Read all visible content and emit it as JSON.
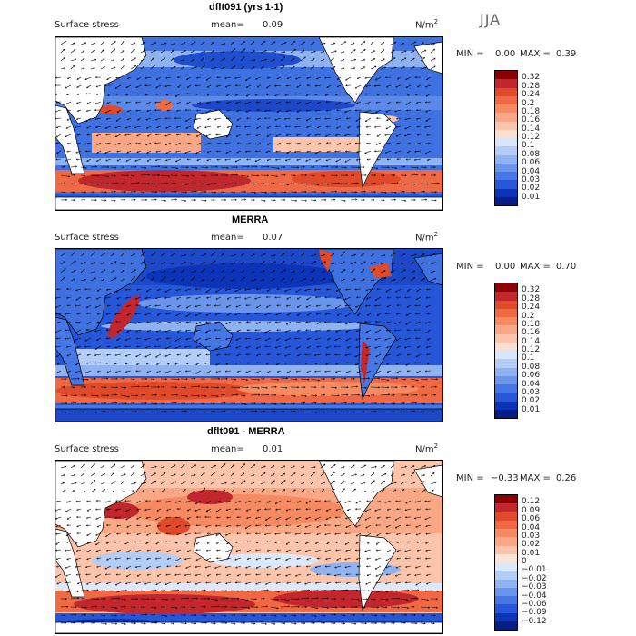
{
  "season": "JJA",
  "panels": [
    {
      "title": "dflt091 (yrs 1-1)",
      "variable": "Surface stress",
      "mean_label": "mean=",
      "mean_value": "0.09",
      "unit": "N/m",
      "unit_exp": "2",
      "min_label": "MIN =",
      "min_value": "0.00",
      "max_label": "MAX =",
      "max_value": "0.39",
      "levels": [
        "0.32",
        "0.28",
        "0.24",
        "0.2",
        "0.18",
        "0.16",
        "0.14",
        "0.12",
        "0.1",
        "0.08",
        "0.06",
        "0.04",
        "0.03",
        "0.02",
        "0.01"
      ],
      "colors": [
        "#8b0000",
        "#c1272d",
        "#e04a2a",
        "#ef6a44",
        "#f58a63",
        "#f9a886",
        "#fcc4aa",
        "#fbe0d0",
        "#d9e6fb",
        "#b4cdf6",
        "#8fb2f0",
        "#6a95ea",
        "#4777e4",
        "#2657d8",
        "#0b34b8",
        "#061d86"
      ]
    },
    {
      "title": "MERRA",
      "variable": "Surface stress",
      "mean_label": "mean=",
      "mean_value": "0.07",
      "unit": "N/m",
      "unit_exp": "2",
      "min_label": "MIN =",
      "min_value": "0.00",
      "max_label": "MAX =",
      "max_value": "0.70",
      "levels": [
        "0.32",
        "0.28",
        "0.24",
        "0.2",
        "0.18",
        "0.16",
        "0.14",
        "0.12",
        "0.1",
        "0.08",
        "0.06",
        "0.04",
        "0.03",
        "0.02",
        "0.01"
      ],
      "colors": [
        "#8b0000",
        "#c1272d",
        "#e04a2a",
        "#ef6a44",
        "#f58a63",
        "#f9a886",
        "#fcc4aa",
        "#fbe0d0",
        "#d9e6fb",
        "#b4cdf6",
        "#8fb2f0",
        "#6a95ea",
        "#4777e4",
        "#2657d8",
        "#0b34b8",
        "#061d86"
      ]
    },
    {
      "title": "dflt091 - MERRA",
      "variable": "Surface stress",
      "mean_label": "mean=",
      "mean_value": "0.01",
      "unit": "N/m",
      "unit_exp": "2",
      "min_label": "MIN =",
      "min_value": "−0.33",
      "max_label": "MAX =",
      "max_value": "0.26",
      "levels": [
        "0.12",
        "0.09",
        "0.06",
        "0.04",
        "0.03",
        "0.02",
        "0.01",
        "0",
        "−0.01",
        "−0.02",
        "−0.03",
        "−0.04",
        "−0.06",
        "−0.09",
        "−0.12"
      ],
      "colors": [
        "#8b0000",
        "#c1272d",
        "#e04a2a",
        "#ef6a44",
        "#f58a63",
        "#f9a886",
        "#fcc4aa",
        "#fbe3d6",
        "#dce8fb",
        "#b4cdf6",
        "#8fb2f0",
        "#6a95ea",
        "#4777e4",
        "#2657d8",
        "#0b34b8",
        "#061d86"
      ]
    }
  ]
}
